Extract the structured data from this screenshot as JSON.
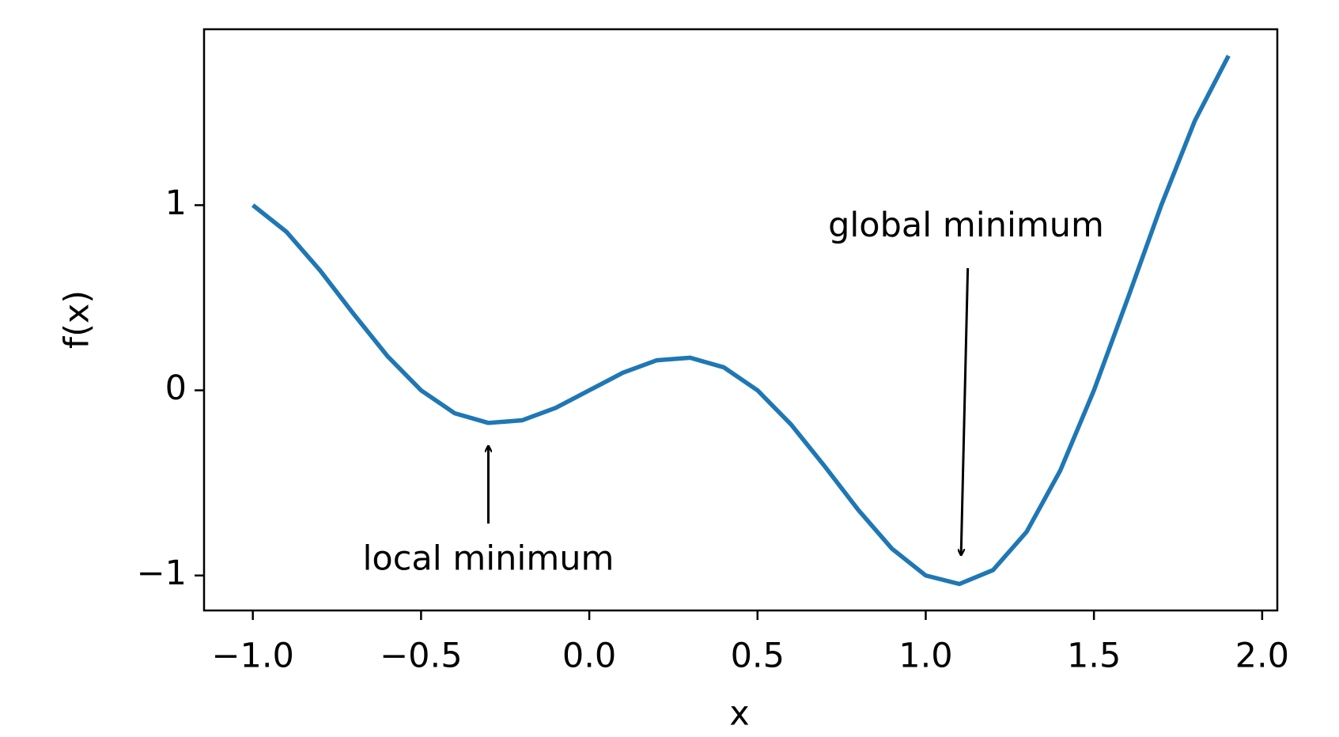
{
  "chart_data": {
    "type": "line",
    "x_label": "x",
    "y_label": "f(x)",
    "x": [
      -1.0,
      -0.9,
      -0.8,
      -0.7,
      -0.6,
      -0.5,
      -0.4,
      -0.3,
      -0.2,
      -0.1,
      0.0,
      0.1,
      0.2,
      0.3,
      0.4,
      0.5,
      0.6,
      0.7,
      0.8,
      0.9,
      1.0,
      1.1,
      1.2,
      1.3,
      1.4,
      1.5,
      1.6,
      1.7,
      1.8,
      1.9
    ],
    "series": [
      {
        "color": "#1f77b4",
        "values": [
          1,
          0.856,
          0.647,
          0.411,
          0.185,
          0,
          -0.124,
          -0.176,
          -0.162,
          -0.095,
          0,
          0.095,
          0.162,
          0.176,
          0.124,
          0,
          -0.185,
          -0.411,
          -0.647,
          -0.856,
          -1,
          -1.046,
          -0.971,
          -0.764,
          -0.433,
          0,
          0.494,
          0.999,
          1.456,
          1.807
        ]
      }
    ],
    "xlim": [
      -1.145,
      2.045
    ],
    "ylim": [
      -1.189,
      1.95
    ],
    "xticks": [
      {
        "value": -1.0,
        "label": "−1.0"
      },
      {
        "value": -0.5,
        "label": "−0.5"
      },
      {
        "value": 0,
        "label": "0.0"
      },
      0.5,
      {
        "value": 1,
        "label": "1.0"
      },
      1.5,
      {
        "value": 2,
        "label": "2.0"
      }
    ],
    "yticks": [
      {
        "value": -1,
        "label": "−1"
      },
      0,
      1
    ],
    "grid": false,
    "annotations": [
      "local minimum",
      "global minimum"
    ]
  }
}
